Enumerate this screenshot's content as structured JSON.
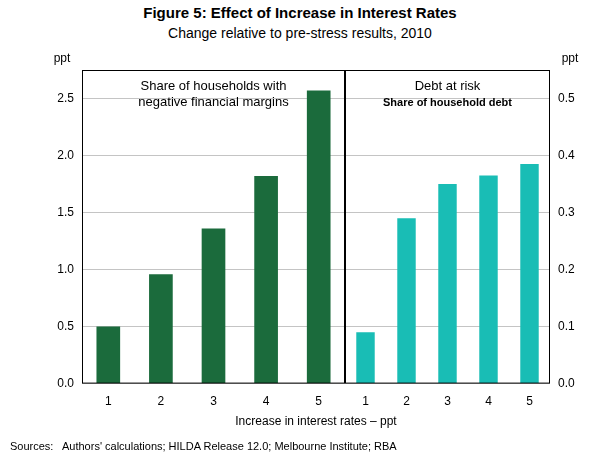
{
  "title": "Figure 5: Effect of Increase in Interest Rates",
  "subtitle": "Change relative to pre-stress results, 2010",
  "x_label": "Increase in interest rates – ppt",
  "source": "Sources:   Authors' calculations; HILDA Release 12.0; Melbourne Institute; RBA",
  "chart_data": [
    {
      "type": "bar",
      "title": [
        "Share of households with",
        "negative financial margins"
      ],
      "y_label": "ppt",
      "categories": [
        1,
        2,
        3,
        4,
        5
      ],
      "values": [
        0.5,
        0.96,
        1.36,
        1.82,
        2.57
      ],
      "color": "#1b6b3c",
      "ylim": [
        0,
        2.75
      ],
      "yticks": [
        {
          "value": 0,
          "label": "0.0"
        },
        0.5,
        {
          "value": 1,
          "label": "1.0"
        },
        1.5,
        {
          "value": 2,
          "label": "2.0"
        },
        2.5
      ],
      "grid": true
    },
    {
      "type": "bar",
      "title": "Debt at risk",
      "subtitle": "Share of household debt",
      "y_label": "ppt",
      "categories": [
        1,
        2,
        3,
        4,
        5
      ],
      "values": [
        0.09,
        0.29,
        0.35,
        0.365,
        0.385
      ],
      "color": "#19bdb5",
      "ylim": [
        0,
        0.55
      ],
      "yticks": [
        {
          "value": 0,
          "label": "0.0"
        },
        0.1,
        0.2,
        0.3,
        0.4,
        0.5
      ],
      "grid": true
    }
  ]
}
